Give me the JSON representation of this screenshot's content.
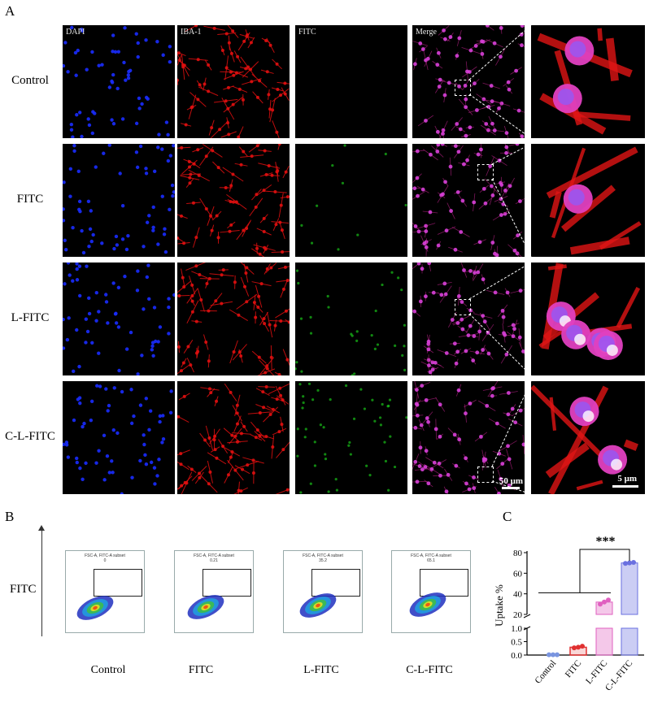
{
  "panels": {
    "a": "A",
    "b": "B",
    "c": "C"
  },
  "rows": [
    "Control",
    "FITC",
    "L-FITC",
    "C-L-FITC"
  ],
  "channels": [
    "DAPI",
    "IBA-1",
    "FITC",
    "Merge"
  ],
  "scalebars": {
    "main": "50 μm",
    "zoom": "5 μm"
  },
  "colors": {
    "dapi": "#1a2cff",
    "iba": "#e01010",
    "fitc": "#18c018",
    "merge": "#d840d8"
  },
  "flow": {
    "y_label": "FITC",
    "plots": [
      {
        "group": "Control",
        "title": "FSC-A, FITC-A subset",
        "value": "0"
      },
      {
        "group": "FITC",
        "title": "FSC-A, FITC-A subset",
        "value": "0.21"
      },
      {
        "group": "L-FITC",
        "title": "FSC-A, FITC-A subset",
        "value": "35.2"
      },
      {
        "group": "C-L-FITC",
        "title": "FSC-A, FITC-A subset",
        "value": "65.1"
      }
    ]
  },
  "chart_data": {
    "type": "bar",
    "categories": [
      "Control",
      "FITC",
      "L-FITC",
      "C-L-FITC"
    ],
    "values": [
      0.01,
      0.29,
      32,
      70
    ],
    "points": [
      [
        0.01,
        0.01,
        0.01
      ],
      [
        0.27,
        0.29,
        0.33
      ],
      [
        30,
        32,
        34
      ],
      [
        69.5,
        70,
        70.5
      ]
    ],
    "ylabel": "Uptake %",
    "broken_axis": {
      "lower_range": [
        0,
        1.0
      ],
      "upper_range": [
        20,
        80
      ]
    },
    "lower_ticks": [
      0.0,
      0.5,
      1.0
    ],
    "upper_ticks": [
      20,
      40,
      60,
      80
    ],
    "colors": [
      "#7a95e0",
      "#e03030",
      "#e060c0",
      "#6a70e0"
    ],
    "significance": "***"
  }
}
